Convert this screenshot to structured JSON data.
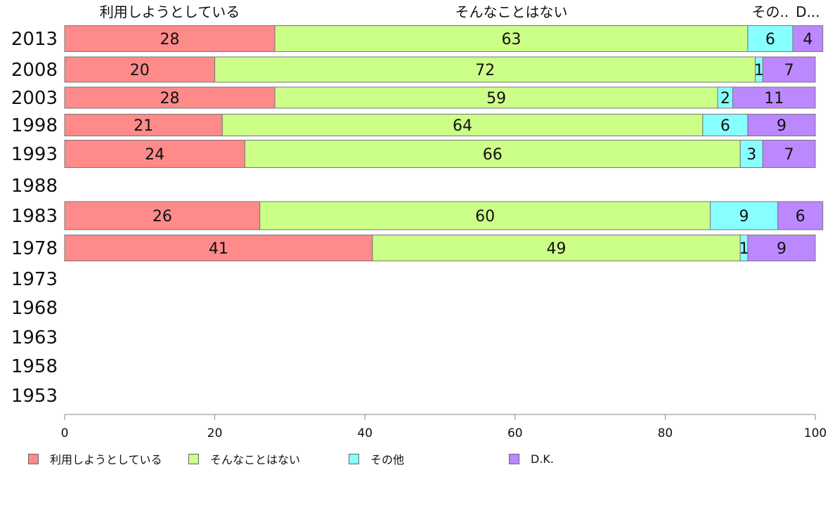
{
  "chart_data": {
    "type": "bar",
    "orientation": "horizontal",
    "stacked": true,
    "title": "",
    "xlabel": "",
    "ylabel": "",
    "xlim": [
      0,
      100
    ],
    "xticks": [
      "0",
      "20",
      "40",
      "60",
      "80",
      "100"
    ],
    "top_labels": [
      "利用しようとしている",
      "そんなことはない",
      "その..",
      "D..."
    ],
    "categories": [
      "2013",
      "2008",
      "2003",
      "1998",
      "1993",
      "1988",
      "1983",
      "1978",
      "1973",
      "1968",
      "1963",
      "1958",
      "1953"
    ],
    "series": [
      {
        "name": "利用しようとしている",
        "color": "#ff8a8a",
        "values": [
          28,
          20,
          28,
          21,
          24,
          null,
          26,
          41,
          null,
          null,
          null,
          null,
          null
        ]
      },
      {
        "name": "そんなことはない",
        "color": "#ccff88",
        "values": [
          63,
          72,
          59,
          64,
          66,
          null,
          60,
          49,
          null,
          null,
          null,
          null,
          null
        ]
      },
      {
        "name": "その他",
        "color": "#88ffff",
        "values": [
          6,
          1,
          2,
          6,
          3,
          null,
          9,
          1,
          null,
          null,
          null,
          null,
          null
        ]
      },
      {
        "name": "D.K.",
        "color": "#bb88ff",
        "values": [
          4,
          7,
          11,
          9,
          7,
          null,
          6,
          9,
          null,
          null,
          null,
          null,
          null
        ]
      }
    ],
    "legend_position": "bottom",
    "grid": false
  }
}
